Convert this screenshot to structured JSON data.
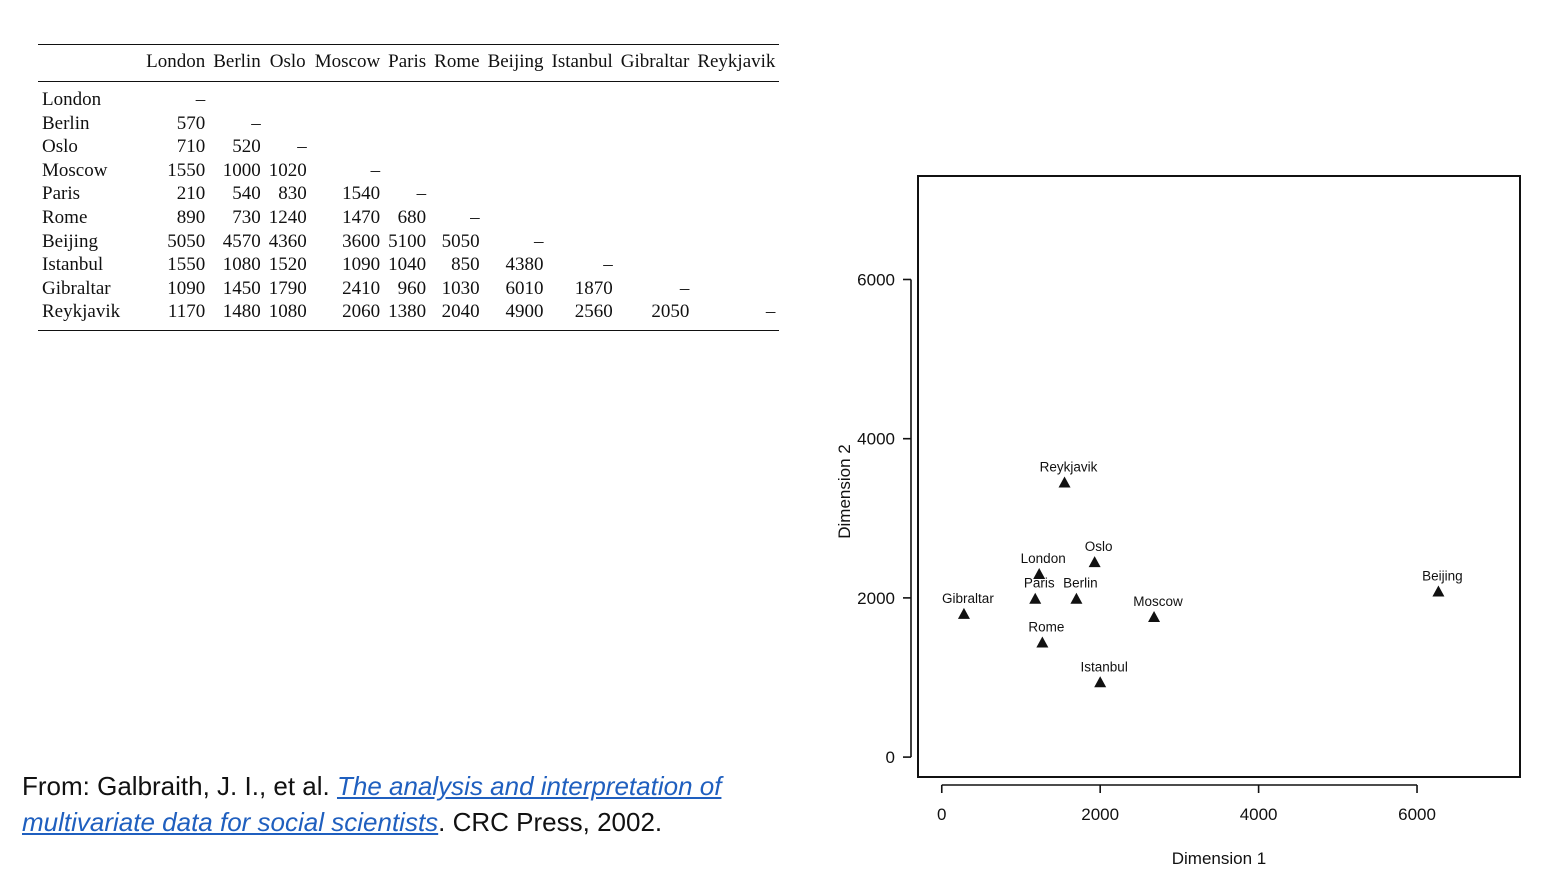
{
  "table": {
    "columns": [
      "London",
      "Berlin",
      "Oslo",
      "Moscow",
      "Paris",
      "Rome",
      "Beijing",
      "Istanbul",
      "Gibraltar",
      "Reykjavik"
    ],
    "rows": [
      {
        "label": "London",
        "cells": [
          "–"
        ]
      },
      {
        "label": "Berlin",
        "cells": [
          "570",
          "–"
        ]
      },
      {
        "label": "Oslo",
        "cells": [
          "710",
          "520",
          "–"
        ]
      },
      {
        "label": "Moscow",
        "cells": [
          "1550",
          "1000",
          "1020",
          "–"
        ]
      },
      {
        "label": "Paris",
        "cells": [
          "210",
          "540",
          "830",
          "1540",
          "–"
        ]
      },
      {
        "label": "Rome",
        "cells": [
          "890",
          "730",
          "1240",
          "1470",
          "680",
          "–"
        ]
      },
      {
        "label": "Beijing",
        "cells": [
          "5050",
          "4570",
          "4360",
          "3600",
          "5100",
          "5050",
          "–"
        ]
      },
      {
        "label": "Istanbul",
        "cells": [
          "1550",
          "1080",
          "1520",
          "1090",
          "1040",
          "850",
          "4380",
          "–"
        ]
      },
      {
        "label": "Gibraltar",
        "cells": [
          "1090",
          "1450",
          "1790",
          "2410",
          "960",
          "1030",
          "6010",
          "1870",
          "–"
        ]
      },
      {
        "label": "Reykjavik",
        "cells": [
          "1170",
          "1480",
          "1080",
          "2060",
          "1380",
          "2040",
          "4900",
          "2560",
          "2050",
          "–"
        ]
      }
    ]
  },
  "citation": {
    "prefix": "From: Galbraith, J. I., et al. ",
    "link_text": "The analysis and interpretation of multivariate data for social scientists",
    "suffix": ". CRC Press, 2002."
  },
  "chart_data": {
    "type": "scatter",
    "xlabel": "Dimension 1",
    "ylabel": "Dimension 2",
    "xlim": [
      -300,
      7300
    ],
    "ylim": [
      -250,
      7300
    ],
    "xticks": [
      0,
      2000,
      4000,
      6000
    ],
    "yticks": [
      0,
      2000,
      4000,
      6000
    ],
    "marker": "triangle",
    "grid": false,
    "points": [
      {
        "label": "Reykjavik",
        "x": 1550,
        "y": 3450
      },
      {
        "label": "Oslo",
        "x": 1930,
        "y": 2450
      },
      {
        "label": "London",
        "x": 1230,
        "y": 2300
      },
      {
        "label": "Paris",
        "x": 1180,
        "y": 1990
      },
      {
        "label": "Berlin",
        "x": 1700,
        "y": 1990
      },
      {
        "label": "Gibraltar",
        "x": 280,
        "y": 1800
      },
      {
        "label": "Moscow",
        "x": 2680,
        "y": 1760
      },
      {
        "label": "Rome",
        "x": 1270,
        "y": 1440
      },
      {
        "label": "Istanbul",
        "x": 2000,
        "y": 940
      },
      {
        "label": "Beijing",
        "x": 6270,
        "y": 2080
      }
    ]
  }
}
